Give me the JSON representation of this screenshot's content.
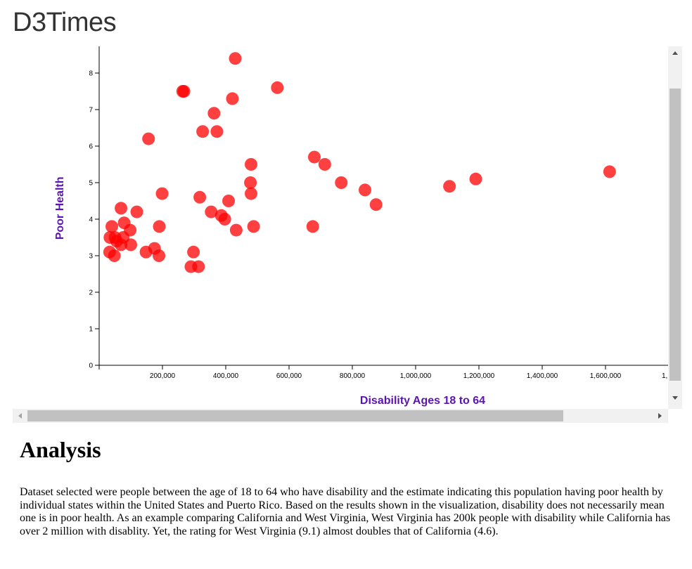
{
  "brand": "D3Times",
  "chart_data": {
    "type": "scatter",
    "xlabel": "Disability Ages 18 to 64",
    "ylabel": "Poor Health",
    "xlim": [
      0,
      1750000
    ],
    "ylim": [
      0,
      8.6
    ],
    "x_ticks": [
      200000,
      400000,
      600000,
      800000,
      1000000,
      1200000,
      1400000,
      1600000
    ],
    "x_tick_labels": [
      "200,000",
      "400,000",
      "600,000",
      "800,000",
      "1,000,000",
      "1,200,000",
      "1,400,000",
      "1,600,000"
    ],
    "x_tick_cut_label": "1,",
    "y_ticks": [
      0,
      1,
      2,
      3,
      4,
      5,
      6,
      7,
      8
    ],
    "y_tick_labels": [
      "0",
      "1",
      "2",
      "3",
      "4",
      "5",
      "6",
      "7",
      "8"
    ],
    "grid": false,
    "point_color": "#ff0000",
    "label_color": "#5b14b4",
    "points": [
      {
        "x": 264000,
        "y": 7.5
      },
      {
        "x": 268000,
        "y": 7.5
      },
      {
        "x": 430000,
        "y": 8.4
      },
      {
        "x": 421000,
        "y": 7.3
      },
      {
        "x": 563000,
        "y": 7.6
      },
      {
        "x": 363000,
        "y": 6.9
      },
      {
        "x": 327000,
        "y": 6.4
      },
      {
        "x": 372000,
        "y": 6.4
      },
      {
        "x": 156000,
        "y": 6.2
      },
      {
        "x": 680000,
        "y": 5.7
      },
      {
        "x": 713000,
        "y": 5.5
      },
      {
        "x": 480000,
        "y": 5.5
      },
      {
        "x": 478000,
        "y": 5.0
      },
      {
        "x": 480000,
        "y": 4.7
      },
      {
        "x": 765000,
        "y": 5.0
      },
      {
        "x": 840000,
        "y": 4.8
      },
      {
        "x": 875000,
        "y": 4.4
      },
      {
        "x": 1107000,
        "y": 4.9
      },
      {
        "x": 1190000,
        "y": 5.1
      },
      {
        "x": 1613000,
        "y": 5.3
      },
      {
        "x": 199000,
        "y": 4.7
      },
      {
        "x": 318000,
        "y": 4.6
      },
      {
        "x": 409000,
        "y": 4.5
      },
      {
        "x": 354000,
        "y": 4.2
      },
      {
        "x": 386000,
        "y": 4.1
      },
      {
        "x": 397000,
        "y": 4.0
      },
      {
        "x": 433000,
        "y": 3.7
      },
      {
        "x": 488000,
        "y": 3.8
      },
      {
        "x": 675000,
        "y": 3.8
      },
      {
        "x": 119000,
        "y": 4.2
      },
      {
        "x": 69000,
        "y": 4.3
      },
      {
        "x": 190000,
        "y": 3.8
      },
      {
        "x": 79000,
        "y": 3.9
      },
      {
        "x": 98000,
        "y": 3.7
      },
      {
        "x": 40000,
        "y": 3.8
      },
      {
        "x": 34000,
        "y": 3.5
      },
      {
        "x": 50000,
        "y": 3.5
      },
      {
        "x": 76000,
        "y": 3.5
      },
      {
        "x": 55000,
        "y": 3.4
      },
      {
        "x": 69000,
        "y": 3.3
      },
      {
        "x": 100000,
        "y": 3.3
      },
      {
        "x": 33000,
        "y": 3.1
      },
      {
        "x": 48000,
        "y": 3.0
      },
      {
        "x": 148000,
        "y": 3.1
      },
      {
        "x": 175000,
        "y": 3.2
      },
      {
        "x": 189000,
        "y": 3.0
      },
      {
        "x": 298000,
        "y": 3.1
      },
      {
        "x": 290000,
        "y": 2.7
      },
      {
        "x": 314000,
        "y": 2.7
      }
    ]
  },
  "analysis": {
    "title": "Analysis",
    "text": "Dataset selected were people between the age of 18 to 64 who have disability and the estimate indicating this population having poor health by individual states within the United States and Puerto Rico. Based on the results shown in the visualization, disability does not necessarily mean one is in poor health. As an example comparing California and West Virginia, West Virginia has 200k people with disability while California has over 2 million with disablity. Yet, the rating for West Virginia (9.1) almost doubles that of California (4.6)."
  }
}
